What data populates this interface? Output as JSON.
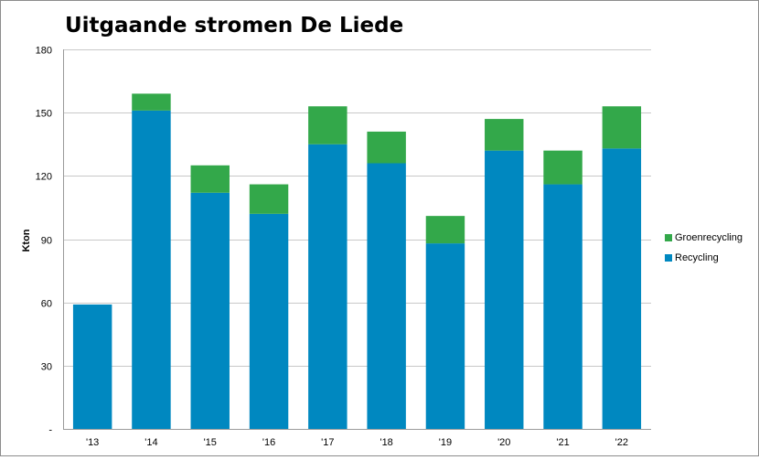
{
  "chart_data": {
    "type": "bar",
    "stacked": true,
    "title": "Uitgaande stromen De Liede",
    "ylabel": "Kton",
    "xlabel": "",
    "ylim": [
      0,
      180
    ],
    "yticks": [
      0,
      30,
      60,
      90,
      120,
      150,
      180
    ],
    "ytick_labels": [
      "-",
      "30",
      "60",
      "90",
      "120",
      "150",
      "180"
    ],
    "categories": [
      "'13",
      "'14",
      "'15",
      "'16",
      "'17",
      "'18",
      "'19",
      "'20",
      "'21",
      "'22"
    ],
    "series": [
      {
        "name": "Recycling",
        "color": "#0088c0",
        "values": [
          59,
          151,
          112,
          102,
          135,
          126,
          88,
          132,
          116,
          133
        ]
      },
      {
        "name": "Groenrecycling",
        "color": "#33a84a",
        "values": [
          0,
          8,
          13,
          14,
          18,
          15,
          13,
          15,
          16,
          20
        ]
      }
    ],
    "legend": {
      "position": "right",
      "order": [
        "Groenrecycling",
        "Recycling"
      ]
    },
    "grid": true
  }
}
